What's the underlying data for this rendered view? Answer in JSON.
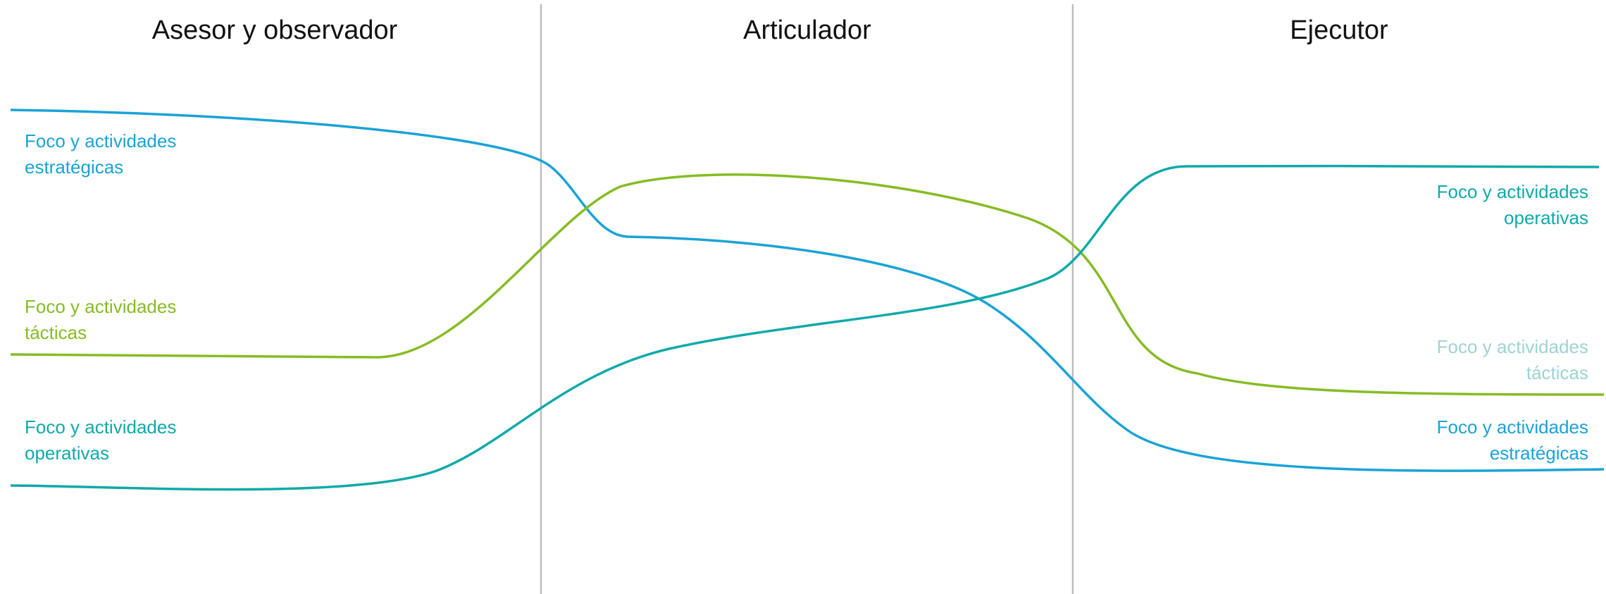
{
  "columns": [
    {
      "title": "Asesor y observador"
    },
    {
      "title": "Articulador"
    },
    {
      "title": "Ejecutor"
    }
  ],
  "left_labels": [
    {
      "line1": "Foco y actividades",
      "line2": "estratégicas",
      "color": "#1aa3d6"
    },
    {
      "line1": "Foco y actividades",
      "line2": "tácticas",
      "color": "#86bc25"
    },
    {
      "line1": "Foco y actividades",
      "line2": "operativas",
      "color": "#10a9a9"
    }
  ],
  "right_labels": [
    {
      "line1": "Foco y actividades",
      "line2": "operativas",
      "color": "#10a9a9"
    },
    {
      "line1": "Foco y actividades",
      "line2": "tácticas",
      "color": "#9fd3d3"
    },
    {
      "line1": "Foco y actividades",
      "line2": "estratégicas",
      "color": "#1aa3d6"
    }
  ],
  "colors": {
    "strategic": "#1aa3d6",
    "tactical": "#86bc25",
    "operational": "#10a9a9",
    "divider": "#bdbdbd",
    "title": "#111111"
  }
}
